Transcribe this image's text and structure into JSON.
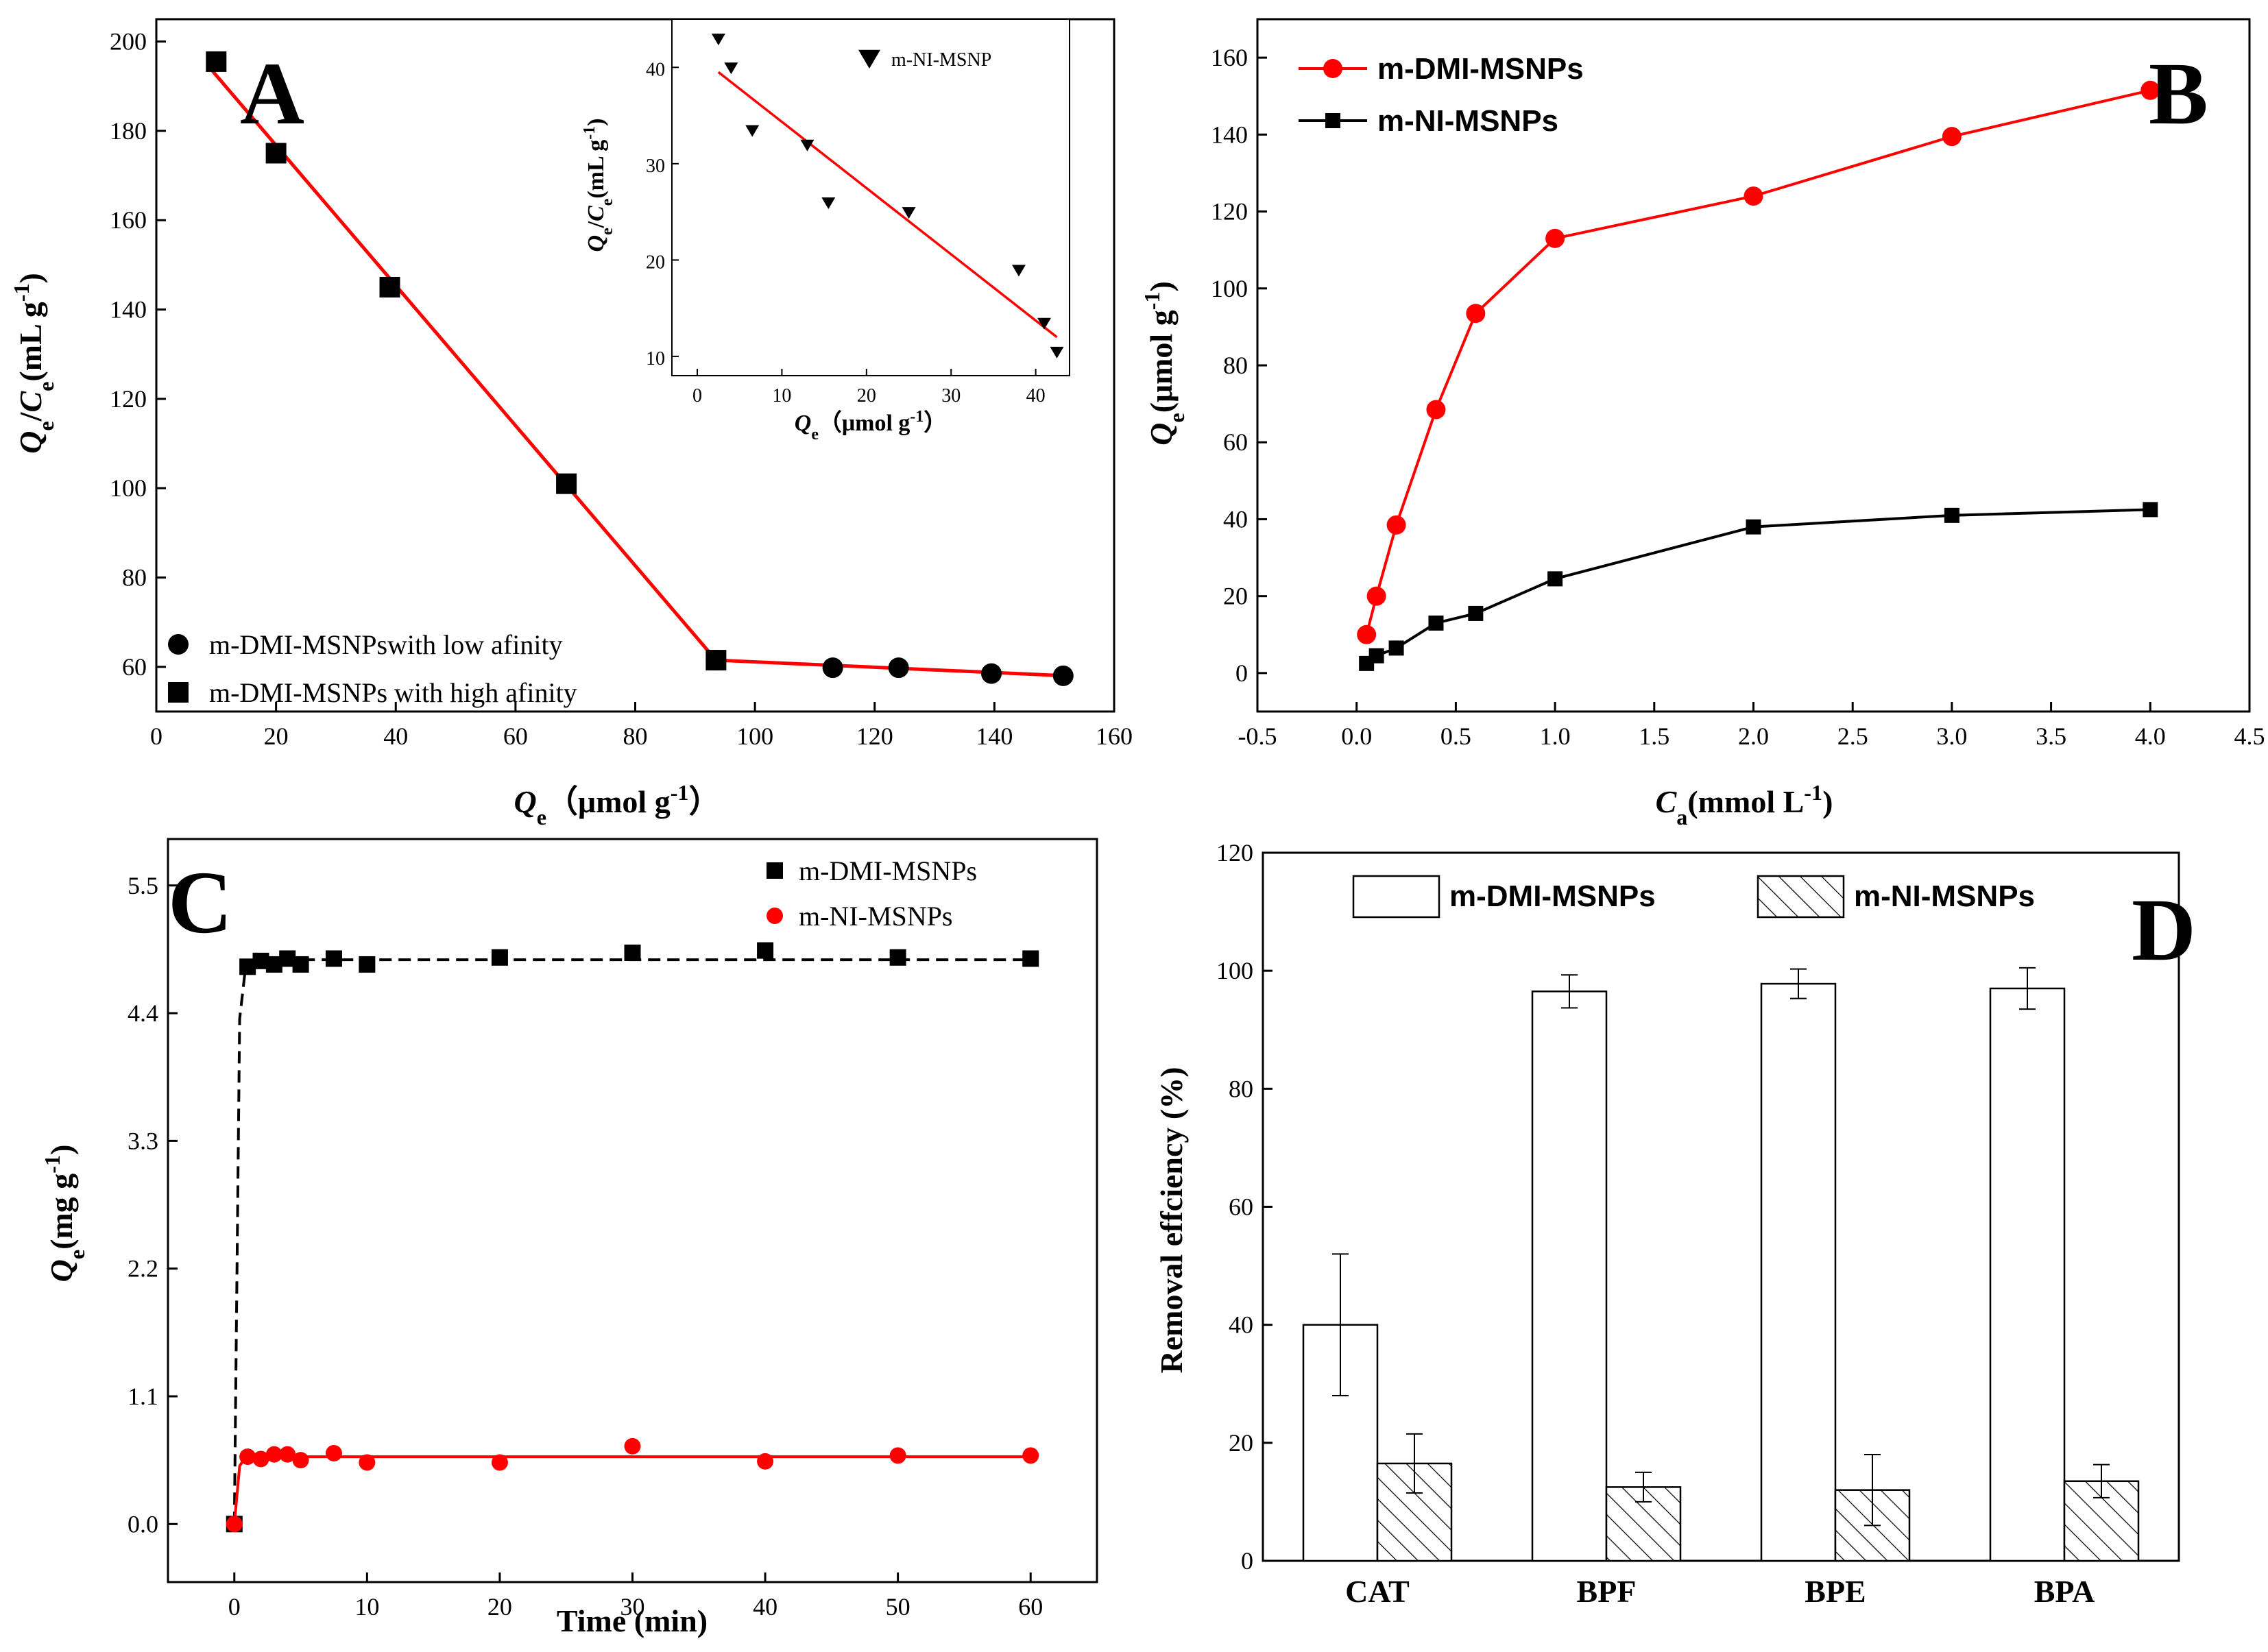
{
  "chart_data": [
    {
      "panel": "A",
      "type": "scatter",
      "xlabel": "Qe（μmol g-1）",
      "ylabel": "Qe/Ce(mL g-1)",
      "xlim": [
        0,
        160
      ],
      "ylim": [
        50,
        205
      ],
      "xticks": [
        0,
        20,
        40,
        60,
        80,
        100,
        120,
        140,
        160
      ],
      "yticks": [
        60,
        80,
        100,
        120,
        140,
        160,
        180,
        200
      ],
      "series": [
        {
          "name": "m-DMI-MSNPswith low afinity",
          "marker": "circle",
          "color": "#000000",
          "x": [
            93.5,
            113,
            124,
            139.5,
            151.5
          ],
          "y": [
            61.5,
            59.8,
            59.8,
            58.5,
            58
          ]
        },
        {
          "name": "m-DMI-MSNPs with high afinity",
          "marker": "square",
          "color": "#000000",
          "x": [
            10,
            20,
            39,
            68.5,
            93.5
          ],
          "y": [
            195.5,
            175,
            145,
            101,
            61.5
          ]
        }
      ],
      "fit_lines": [
        {
          "color": "#ff0000",
          "x": [
            9,
            93.5
          ],
          "y": [
            194,
            61.5
          ]
        },
        {
          "color": "#ff0000",
          "x": [
            93.5,
            152
          ],
          "y": [
            61.5,
            58
          ]
        }
      ],
      "legend_position": "bottom-left",
      "inset": {
        "type": "scatter",
        "xlabel": "Qe（μmol g-1）",
        "ylabel": "Qe/Ce(mL g-1)",
        "xlim": [
          -3,
          44
        ],
        "ylim": [
          8,
          45
        ],
        "xticks": [
          0,
          10,
          20,
          30,
          40
        ],
        "yticks": [
          10,
          20,
          30,
          40
        ],
        "series": [
          {
            "name": "m-NI-MSNP",
            "marker": "triangle-down",
            "color": "#000000",
            "x": [
              2.5,
              4,
              6.5,
              13,
              15.5,
              25,
              38,
              41,
              42.5
            ],
            "y": [
              43,
              40,
              33.5,
              32,
              26,
              25,
              19,
              13.5,
              10.5
            ]
          }
        ],
        "fit_line": {
          "color": "#ff0000",
          "x": [
            2.5,
            42.5
          ],
          "y": [
            39.5,
            12
          ]
        }
      }
    },
    {
      "panel": "B",
      "type": "line",
      "xlabel": "Ca(mmol L-1)",
      "ylabel": "Qe(μmol g-1)",
      "xlim": [
        -0.5,
        4.5
      ],
      "ylim": [
        -10,
        170
      ],
      "xticks": [
        -0.5,
        0.0,
        0.5,
        1.0,
        1.5,
        2.0,
        2.5,
        3.0,
        3.5,
        4.0,
        4.5
      ],
      "yticks": [
        0,
        20,
        40,
        60,
        80,
        100,
        120,
        140,
        160
      ],
      "series": [
        {
          "name": "m-DMI-MSNPs",
          "color": "#ff0000",
          "marker": "circle",
          "x": [
            0.05,
            0.1,
            0.2,
            0.4,
            0.6,
            1.0,
            2.0,
            3.0,
            4.0
          ],
          "y": [
            10,
            20,
            38.5,
            68.5,
            93.5,
            113,
            124,
            139.5,
            151.5
          ]
        },
        {
          "name": "m-NI-MSNPs",
          "color": "#000000",
          "marker": "square",
          "x": [
            0.05,
            0.1,
            0.2,
            0.4,
            0.6,
            1.0,
            2.0,
            3.0,
            4.0
          ],
          "y": [
            2.5,
            4.5,
            6.5,
            13,
            15.5,
            24.5,
            38,
            41,
            42.5
          ]
        }
      ],
      "legend_position": "top-left"
    },
    {
      "panel": "C",
      "type": "scatter",
      "xlabel": "Time (min)",
      "ylabel": "Qe(mg g-1)",
      "xlim": [
        -5,
        65
      ],
      "ylim": [
        -0.5,
        5.9
      ],
      "xticks": [
        0,
        10,
        20,
        30,
        40,
        50,
        60
      ],
      "yticks": [
        "0.0",
        "1.1",
        "2.2",
        "3.3",
        "4.4",
        "5.5"
      ],
      "series": [
        {
          "name": "m-DMI-MSNPs",
          "color": "#000000",
          "marker": "square",
          "x": [
            0,
            1,
            2,
            3,
            4,
            5,
            7.5,
            10,
            20,
            30,
            40,
            50,
            60
          ],
          "y": [
            0,
            4.8,
            4.85,
            4.82,
            4.87,
            4.82,
            4.87,
            4.82,
            4.88,
            4.92,
            4.94,
            4.88,
            4.87
          ]
        },
        {
          "name": "m-NI-MSNPs",
          "color": "#ff0000",
          "marker": "circle",
          "x": [
            0,
            1,
            2,
            3,
            4,
            5,
            7.5,
            10,
            20,
            30,
            40,
            50,
            60
          ],
          "y": [
            0,
            0.58,
            0.56,
            0.6,
            0.6,
            0.55,
            0.61,
            0.53,
            0.53,
            0.67,
            0.54,
            0.59,
            0.59
          ]
        }
      ],
      "fit_lines": [
        {
          "color": "#000000",
          "style": "dashed",
          "x": [
            0,
            0.4,
            0.8,
            1.5,
            3,
            60
          ],
          "y": [
            0,
            4.35,
            4.75,
            4.84,
            4.86,
            4.86
          ]
        },
        {
          "color": "#ff0000",
          "style": "solid",
          "x": [
            0,
            0.4,
            0.8,
            1.5,
            3,
            60
          ],
          "y": [
            0,
            0.5,
            0.57,
            0.58,
            0.58,
            0.58
          ]
        }
      ],
      "legend_position": "top-right"
    },
    {
      "panel": "D",
      "type": "bar",
      "xlabel": "",
      "ylabel": "Removal effciency (%)",
      "ylim": [
        0,
        120
      ],
      "yticks": [
        0,
        20,
        40,
        60,
        80,
        100,
        120
      ],
      "categories": [
        "CAT",
        "BPF",
        "BPE",
        "BPA"
      ],
      "series": [
        {
          "name": "m-DMI-MSNPs",
          "fill": "white",
          "values": [
            40,
            96.5,
            97.8,
            97
          ],
          "errors": [
            12,
            2.8,
            2.5,
            3.5
          ]
        },
        {
          "name": "m-NI-MSNPs",
          "fill": "hatched",
          "values": [
            16.5,
            12.5,
            12,
            13.5
          ],
          "errors": [
            5,
            2.5,
            6,
            2.8
          ]
        }
      ],
      "legend_position": "top"
    }
  ],
  "panel_letters": {
    "a": "A",
    "b": "B",
    "c": "C",
    "d": "D"
  }
}
